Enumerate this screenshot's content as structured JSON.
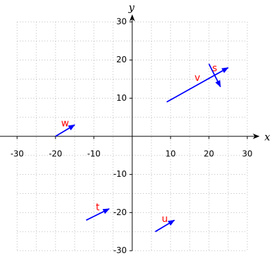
{
  "chart_data": {
    "type": "vector",
    "xlabel": "x",
    "ylabel": "y",
    "xlim": [
      -30,
      30
    ],
    "ylim": [
      -30,
      30
    ],
    "xticks": [
      -30,
      -20,
      -10,
      10,
      20,
      30
    ],
    "yticks": [
      -30,
      -20,
      -10,
      10,
      20,
      30
    ],
    "minor_xticks": [
      -30,
      -25,
      -20,
      -15,
      -10,
      -5,
      5,
      10,
      15,
      20,
      25,
      30
    ],
    "minor_yticks": [
      -30,
      -25,
      -20,
      -15,
      -10,
      -5,
      5,
      10,
      15,
      20,
      25,
      30
    ],
    "grid": true,
    "arrow_color": "#0000ff",
    "label_color": "#ff0000",
    "series": [
      {
        "name": "w",
        "start": [
          -20,
          0
        ],
        "end": [
          -15,
          3
        ]
      },
      {
        "name": "v",
        "start": [
          9,
          9
        ],
        "end": [
          25,
          18
        ]
      },
      {
        "name": "s",
        "start": [
          20,
          19
        ],
        "end": [
          23,
          13
        ]
      },
      {
        "name": "t",
        "start": [
          -12,
          -22
        ],
        "end": [
          -6,
          -19
        ]
      },
      {
        "name": "u",
        "start": [
          6,
          -25
        ],
        "end": [
          11,
          -22
        ]
      }
    ]
  }
}
